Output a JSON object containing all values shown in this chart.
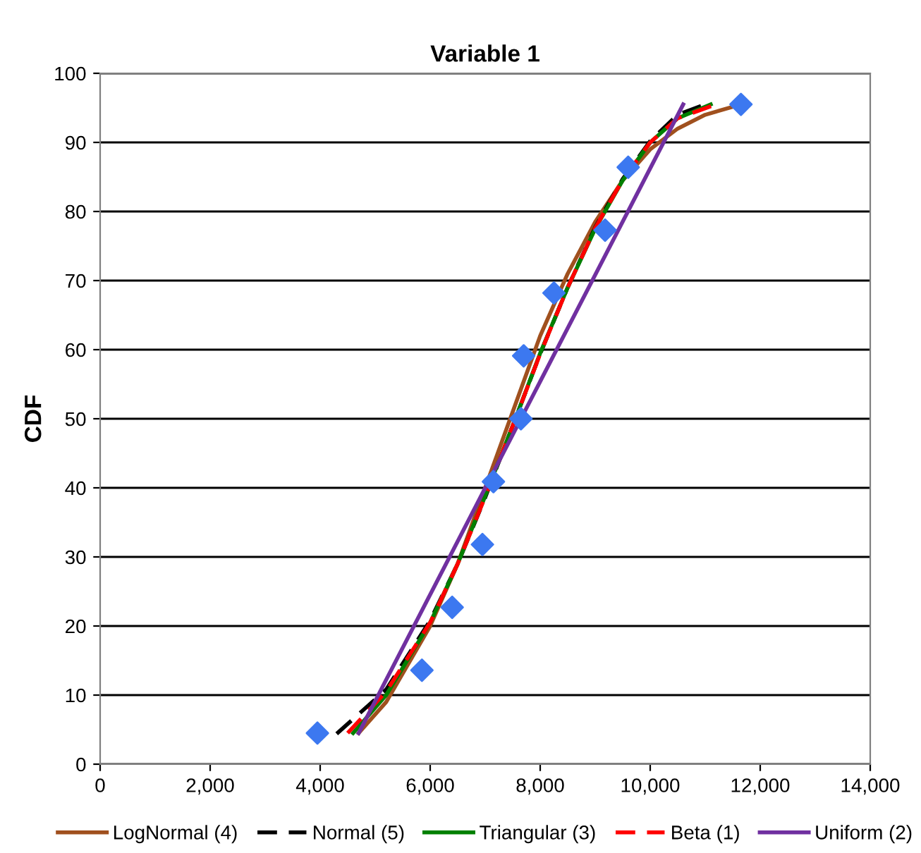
{
  "chart_data": {
    "type": "line",
    "title": "Variable 1",
    "ylabel": "CDF",
    "xlim": [
      0,
      14000
    ],
    "ylim": [
      0,
      100
    ],
    "xticks": [
      {
        "value": 0,
        "label": "0"
      },
      {
        "value": 2000,
        "label": "2,000"
      },
      {
        "value": 4000,
        "label": "4,000"
      },
      {
        "value": 6000,
        "label": "6,000"
      },
      {
        "value": 8000,
        "label": "8,000"
      },
      {
        "value": 10000,
        "label": "10,000"
      },
      {
        "value": 12000,
        "label": "12,000"
      },
      {
        "value": 14000,
        "label": "14,000"
      }
    ],
    "yticks": [
      0,
      10,
      20,
      30,
      40,
      50,
      60,
      70,
      80,
      90,
      100
    ],
    "grid": "y",
    "legend": "bottom",
    "marker": "none",
    "series": [
      {
        "name": "LogNormal (4)",
        "color": "#a0501e",
        "line_style": "solid",
        "x": [
          4700,
          5200,
          6000,
          6500,
          7000,
          7500,
          8000,
          8500,
          9000,
          9500,
          10000,
          10500,
          11000,
          11650
        ],
        "values": [
          4.5,
          9,
          20,
          29,
          40,
          51,
          62,
          71,
          78.5,
          84.5,
          89,
          92,
          94,
          95.5
        ]
      },
      {
        "name": "Normal (5)",
        "color": "#000000",
        "line_style": "dashed",
        "x": [
          4300,
          5200,
          6000,
          6500,
          7000,
          7550,
          8000,
          8500,
          9000,
          9500,
          10000,
          10500,
          11000
        ],
        "values": [
          4.4,
          10.8,
          20.8,
          29,
          38.6,
          50,
          59.4,
          69,
          77.7,
          84.7,
          90.2,
          94,
          95.5
        ]
      },
      {
        "name": "Triangular (3)",
        "color": "#008000",
        "line_style": "solid",
        "x": [
          4600,
          5200,
          6000,
          6500,
          7000,
          7550,
          8000,
          8500,
          9000,
          9500,
          10000,
          10500,
          11100
        ],
        "values": [
          4.5,
          10,
          20.5,
          29,
          38.8,
          50,
          59.5,
          69,
          77.5,
          84.5,
          90,
          93.5,
          95.5
        ]
      },
      {
        "name": "Beta (1)",
        "color": "#ff0000",
        "line_style": "dashed",
        "x": [
          4500,
          5200,
          6000,
          6500,
          7000,
          7550,
          8000,
          8500,
          9000,
          9500,
          10000,
          10500,
          11200
        ],
        "values": [
          4.5,
          10.5,
          20.5,
          29,
          38.7,
          50,
          59.4,
          69,
          77.6,
          84.6,
          90,
          93.5,
          95.5
        ]
      },
      {
        "name": "Uniform (2)",
        "color": "#7030a0",
        "line_style": "solid",
        "x": [
          4700,
          10600
        ],
        "values": [
          4.5,
          95.5
        ]
      },
      {
        "type": "scatter",
        "color": "#3c78f0",
        "marker": "diamond",
        "x": [
          3950,
          5850,
          6400,
          6950,
          7150,
          7650,
          7700,
          8250,
          9180,
          9600,
          11650
        ],
        "values": [
          4.5,
          13.6,
          22.7,
          31.8,
          40.9,
          50,
          59.1,
          68.2,
          77.3,
          86.4,
          95.5
        ]
      }
    ]
  }
}
